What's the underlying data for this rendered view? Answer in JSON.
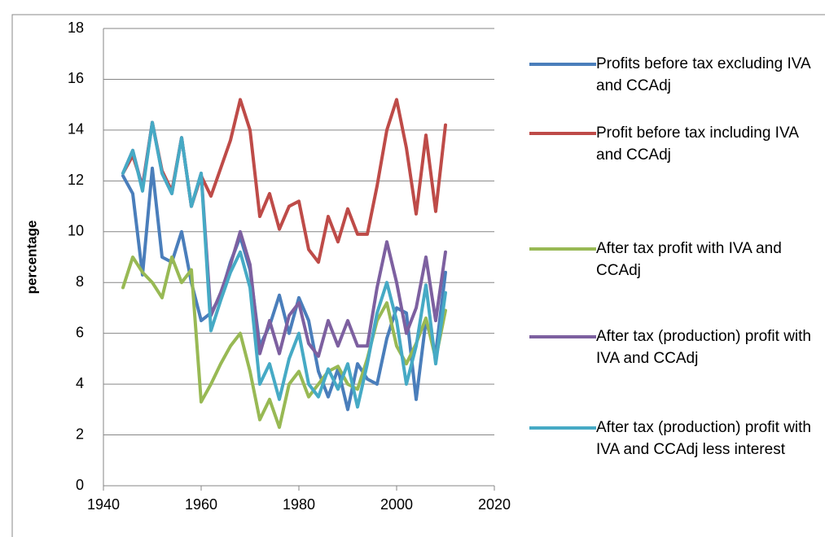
{
  "chart_data": {
    "type": "line",
    "y_label": "percentage",
    "x": [
      1944,
      1946,
      1948,
      1950,
      1952,
      1954,
      1956,
      1958,
      1960,
      1962,
      1964,
      1966,
      1968,
      1970,
      1972,
      1974,
      1976,
      1978,
      1980,
      1982,
      1984,
      1986,
      1988,
      1990,
      1992,
      1994,
      1996,
      1998,
      2000,
      2002,
      2004,
      2006,
      2008,
      2010
    ],
    "series": [
      {
        "name": "Profits before tax excluding IVA and CCAdj",
        "color": "#4a7ebb",
        "values": [
          12.2,
          11.5,
          8.3,
          12.5,
          9.0,
          8.8,
          10.0,
          8.0,
          6.5,
          6.8,
          7.5,
          8.8,
          9.8,
          8.5,
          5.5,
          6.3,
          7.5,
          6.0,
          7.4,
          6.5,
          4.5,
          3.5,
          4.6,
          3.0,
          4.8,
          4.2,
          4.0,
          5.8,
          7.0,
          6.8,
          3.4,
          6.5,
          5.2,
          8.4
        ]
      },
      {
        "name": "Profit before tax including IVA and CCAdj",
        "color": "#be4b48",
        "values": [
          12.3,
          13.0,
          11.8,
          14.3,
          12.4,
          11.6,
          13.7,
          11.0,
          12.2,
          11.4,
          12.5,
          13.6,
          15.2,
          14.0,
          10.6,
          11.5,
          10.1,
          11.0,
          11.2,
          9.3,
          8.8,
          10.6,
          9.6,
          10.9,
          9.9,
          9.9,
          11.8,
          14.0,
          15.2,
          13.3,
          10.7,
          13.8,
          10.8,
          14.2
        ]
      },
      {
        "name": "After tax profit with IVA and CCAdj",
        "color": "#98b954",
        "values": [
          7.8,
          9.0,
          8.4,
          8.0,
          7.4,
          9.0,
          8.0,
          8.5,
          3.3,
          4.0,
          4.8,
          5.5,
          6.0,
          4.5,
          2.6,
          3.4,
          2.3,
          4.0,
          4.5,
          3.5,
          4.0,
          4.5,
          4.7,
          4.0,
          3.8,
          5.0,
          6.5,
          7.2,
          5.5,
          4.8,
          5.6,
          6.6,
          5.0,
          6.9
        ]
      },
      {
        "name": "After tax (production) profit with IVA and CCAdj",
        "color": "#7d60a0",
        "values": [
          12.3,
          13.2,
          11.7,
          14.3,
          12.3,
          11.5,
          13.7,
          11.0,
          12.3,
          6.7,
          7.6,
          8.7,
          10.0,
          8.7,
          5.2,
          6.5,
          5.2,
          6.7,
          7.2,
          5.6,
          5.1,
          6.5,
          5.5,
          6.5,
          5.5,
          5.5,
          7.8,
          9.6,
          8.0,
          6.0,
          7.0,
          9.0,
          6.5,
          9.2
        ]
      },
      {
        "name": "After tax (production) profit with IVA and CCAdj less interest",
        "color": "#46aac5",
        "values": [
          12.3,
          13.2,
          11.6,
          14.3,
          12.3,
          11.5,
          13.7,
          11.0,
          12.3,
          6.1,
          7.3,
          8.4,
          9.2,
          7.8,
          4.0,
          4.8,
          3.4,
          5.0,
          6.0,
          4.0,
          3.5,
          4.6,
          3.8,
          4.8,
          3.1,
          4.8,
          6.8,
          8.0,
          6.5,
          4.0,
          5.5,
          7.9,
          4.8,
          7.6
        ]
      }
    ],
    "xlim": [
      1940,
      2020
    ],
    "xticks": [
      1940,
      1960,
      1980,
      2000,
      2020
    ],
    "ylim": [
      0,
      18
    ],
    "yticks": [
      0,
      2,
      4,
      6,
      8,
      10,
      12,
      14,
      16,
      18
    ],
    "grid": true,
    "legend": "right"
  }
}
